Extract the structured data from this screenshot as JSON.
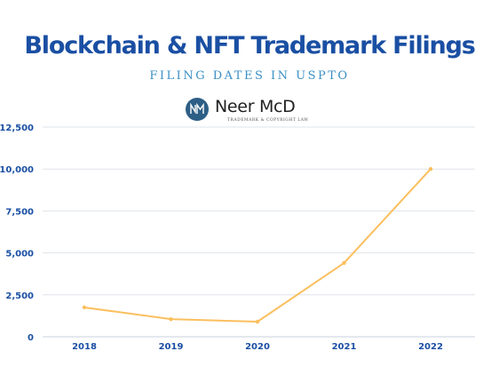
{
  "header": {
    "title": "Blockchain & NFT Trademark Filings",
    "subtitle": "FILING DATES IN USPTO"
  },
  "logo": {
    "name": "Neer McD",
    "tagline": "Trademark & Copyright Law",
    "mark_letters": "NM",
    "mark_color": "#2d5e86"
  },
  "colors": {
    "title": "#1a4fa3",
    "subtitle": "#3a8fc4",
    "line": "#fbbf5e",
    "grid": "#dfe4ea",
    "axis_labels": "#1a4fa3"
  },
  "chart_data": {
    "type": "line",
    "categories": [
      "2018",
      "2019",
      "2020",
      "2021",
      "2022"
    ],
    "series": [
      {
        "values": [
          1750,
          1050,
          900,
          4400,
          10000
        ]
      }
    ],
    "ylim": [
      0,
      12500
    ],
    "yticks": [
      "0",
      "2,500",
      "5,000",
      "7,500",
      "10,000",
      "12,500"
    ],
    "ytick_values": [
      0,
      2500,
      5000,
      7500,
      10000,
      12500
    ],
    "grid": true,
    "xlabel": "",
    "ylabel": ""
  }
}
